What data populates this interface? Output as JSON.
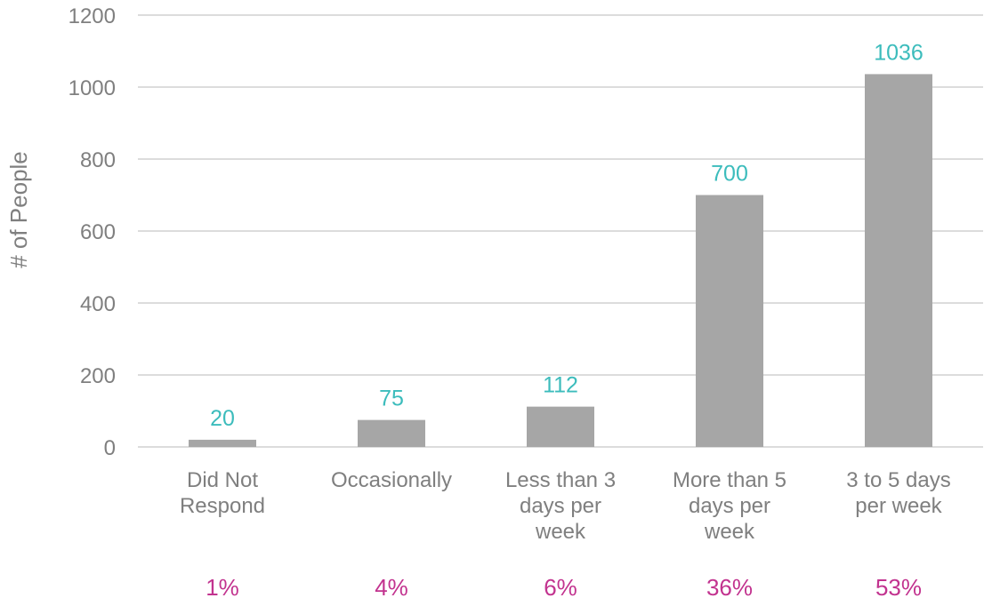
{
  "colors": {
    "bar": "#a6a6a6",
    "gridline": "#c8c8c8",
    "tick_text": "#7f7f7f",
    "value_label": "#3cbcbc",
    "percent_label": "#c2338f"
  },
  "chart_data": {
    "type": "bar",
    "categories": [
      [
        "Did Not",
        "Respond"
      ],
      [
        "Occasionally"
      ],
      [
        "Less than 3",
        "days per",
        "week"
      ],
      [
        "More than 5",
        "days per",
        "week"
      ],
      [
        "3 to 5 days",
        "per week"
      ]
    ],
    "values": [
      20,
      75,
      112,
      700,
      1036
    ],
    "value_labels": [
      "20",
      "75",
      "112",
      "700",
      "1036"
    ],
    "percent_labels": [
      "1%",
      "4%",
      "6%",
      "36%",
      "53%"
    ],
    "title": "",
    "xlabel": "",
    "ylabel": "# of People",
    "ylim": [
      0,
      1200
    ],
    "yticks": [
      0,
      200,
      400,
      600,
      800,
      1000,
      1200
    ],
    "grid": true,
    "legend": "none"
  }
}
